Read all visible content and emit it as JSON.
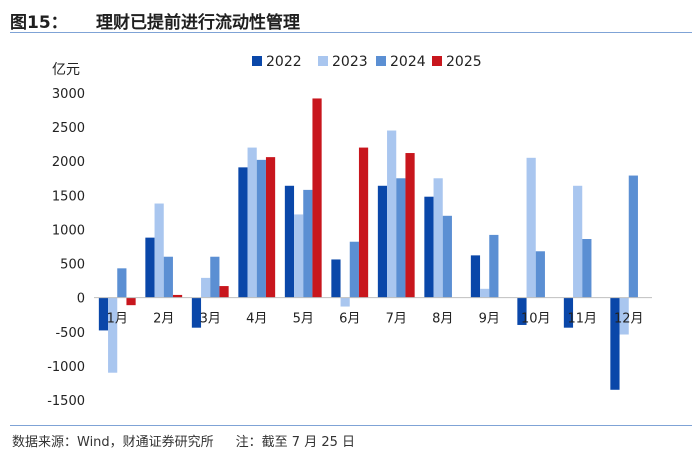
{
  "header": {
    "figure_number": "图15：",
    "title": "理财已提前进行流动性管理"
  },
  "footer": {
    "source": "数据来源：Wind，财通证券研究所",
    "note": "注：截至 7 月 25 日"
  },
  "colors": {
    "accent_rule": "#7fa3d6"
  },
  "chart_data": {
    "type": "bar",
    "ylabel": "亿元",
    "ylim": [
      -1500,
      3000
    ],
    "yticks": [
      -1500,
      -1000,
      -500,
      0,
      500,
      1000,
      1500,
      2000,
      2500,
      3000
    ],
    "ytick_labels": [
      "-1500",
      "-1000",
      "-500",
      "0",
      "500",
      "1000",
      "1500",
      "2000",
      "2500",
      "3000"
    ],
    "categories": [
      "1月",
      "2月",
      "3月",
      "4月",
      "5月",
      "6月",
      "7月",
      "8月",
      "9月",
      "10月",
      "11月",
      "12月"
    ],
    "legend_position": "top-center",
    "grid": false,
    "series": [
      {
        "name": "2022",
        "color": "#0a47a9",
        "values": [
          -480,
          880,
          -440,
          1910,
          1640,
          560,
          1640,
          1480,
          620,
          -400,
          -440,
          -1350
        ]
      },
      {
        "name": "2023",
        "color": "#a9c6ef",
        "values": [
          -1100,
          1380,
          290,
          2200,
          1220,
          -130,
          2450,
          1750,
          130,
          2050,
          1640,
          -540
        ]
      },
      {
        "name": "2024",
        "color": "#5b8fd3",
        "values": [
          430,
          600,
          600,
          2020,
          1580,
          820,
          1750,
          1200,
          920,
          680,
          860,
          1790
        ]
      },
      {
        "name": "2025",
        "color": "#c8161d",
        "values": [
          -110,
          40,
          170,
          2060,
          2920,
          2200,
          2120,
          null,
          null,
          null,
          null,
          null
        ]
      }
    ]
  }
}
